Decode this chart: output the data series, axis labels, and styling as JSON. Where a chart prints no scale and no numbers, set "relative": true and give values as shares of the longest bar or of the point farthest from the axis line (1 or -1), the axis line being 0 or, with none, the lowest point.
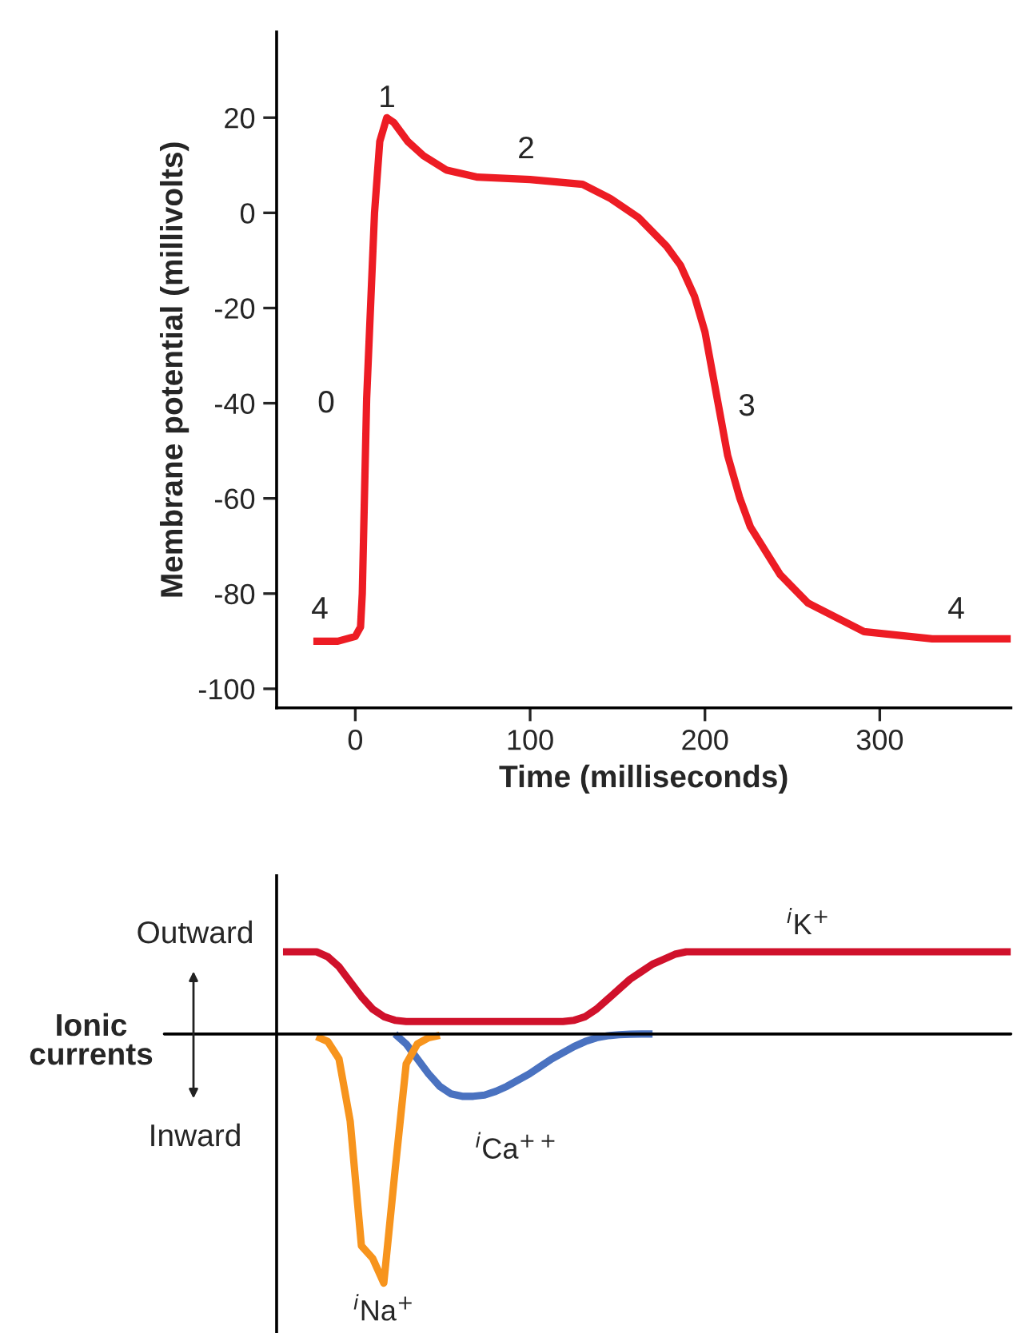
{
  "chart_data": [
    {
      "type": "line",
      "xlabel": "Time (milliseconds)",
      "ylabel": "Membrane potential (millivolts)",
      "series": [
        {
          "color": "#ed1c24",
          "x": [
            -24,
            -10,
            0,
            3,
            4,
            6.5,
            11,
            14,
            18,
            22,
            30,
            39,
            52,
            70,
            100,
            130,
            146,
            162,
            178,
            186,
            194,
            200,
            207,
            213,
            220,
            226,
            243,
            259,
            291,
            330,
            375
          ],
          "values": [
            -90,
            -90,
            -89,
            -87,
            -80,
            -39,
            0,
            15,
            20,
            19,
            15,
            12,
            9,
            7.5,
            7,
            6,
            3,
            -1,
            -7,
            -11,
            -17.5,
            -25,
            -39,
            -51,
            -60,
            -66,
            -76,
            -82,
            -88,
            -89.5,
            -89.5
          ]
        }
      ],
      "xlim": [
        -45,
        375
      ],
      "ylim": [
        -104,
        38
      ],
      "xticks": [
        0,
        100,
        200,
        300
      ],
      "yticks": [
        -100,
        -80,
        -60,
        -40,
        -20,
        0,
        20
      ],
      "grid": false,
      "legend": false,
      "marker": "none",
      "line_style": "solid",
      "annotations": [
        "0",
        "1",
        "2",
        "3",
        "4",
        "4"
      ]
    },
    {
      "type": "line",
      "relative": true,
      "grid": false,
      "legend": false,
      "marker": "none",
      "line_style": "solid",
      "categories": [
        null,
        null,
        null,
        null,
        null,
        null,
        null,
        null,
        null,
        null,
        null,
        null,
        null,
        null,
        null,
        null,
        null,
        null,
        null,
        null,
        null,
        null,
        null,
        null,
        null,
        null,
        null,
        null,
        null,
        null,
        null,
        null,
        null,
        null,
        null,
        null,
        null,
        null,
        null,
        null,
        null,
        null,
        null,
        null,
        null,
        null,
        null,
        null,
        null,
        null,
        null,
        null,
        null,
        null,
        null,
        null,
        null,
        null,
        null,
        null,
        null,
        null,
        null,
        null,
        null,
        null
      ],
      "series": [
        {
          "name": "$^{i}$K$^{+}$",
          "color": "#d0112b",
          "values": [
            0.33,
            0.33,
            0.33,
            0.33,
            0.31,
            0.27,
            0.21,
            0.15,
            0.1,
            0.07,
            0.055,
            0.05,
            0.05,
            0.05,
            0.05,
            0.05,
            0.05,
            0.05,
            0.05,
            0.05,
            0.05,
            0.05,
            0.05,
            0.05,
            0.05,
            0.05,
            0.055,
            0.07,
            0.1,
            0.14,
            0.18,
            0.22,
            0.25,
            0.28,
            0.3,
            0.32,
            0.33,
            0.33,
            0.33,
            0.33,
            0.33,
            0.33,
            0.33,
            0.33,
            0.33,
            0.33,
            0.33,
            0.33,
            0.33,
            0.33,
            0.33,
            0.33,
            0.33,
            0.33,
            0.33,
            0.33,
            0.33,
            0.33,
            0.33,
            0.33,
            0.33,
            0.33,
            0.33,
            0.33,
            0.33,
            0.33
          ]
        },
        {
          "name": "$^{i}$Ca$^{++}$",
          "color": "#4a72c0",
          "values": [
            null,
            null,
            null,
            null,
            null,
            null,
            null,
            null,
            null,
            null,
            0,
            -0.04,
            -0.1,
            -0.16,
            -0.21,
            -0.24,
            -0.25,
            -0.25,
            -0.245,
            -0.23,
            -0.21,
            -0.185,
            -0.16,
            -0.13,
            -0.1,
            -0.075,
            -0.05,
            -0.03,
            -0.015,
            -0.007,
            -0.003,
            -0.001,
            0,
            0,
            null,
            null,
            null,
            null,
            null,
            null,
            null,
            null,
            null,
            null,
            null,
            null,
            null,
            null,
            null,
            null,
            null,
            null,
            null,
            null,
            null,
            null,
            null,
            null,
            null,
            null,
            null,
            null,
            null,
            null,
            null,
            null
          ]
        },
        {
          "name": "$^{i}$Na$^{+}$",
          "color": "#f7941d",
          "values": [
            null,
            null,
            null,
            -0.01,
            -0.03,
            -0.1,
            -0.35,
            -0.85,
            -0.9,
            -1,
            -0.55,
            -0.12,
            -0.04,
            -0.015,
            -0.005,
            null,
            null,
            null,
            null,
            null,
            null,
            null,
            null,
            null,
            null,
            null,
            null,
            null,
            null,
            null,
            null,
            null,
            null,
            null,
            null,
            null,
            null,
            null,
            null,
            null,
            null,
            null,
            null,
            null,
            null,
            null,
            null,
            null,
            null,
            null,
            null,
            null,
            null,
            null,
            null,
            null,
            null,
            null,
            null,
            null,
            null,
            null,
            null,
            null,
            null,
            null
          ]
        }
      ],
      "annotations": [
        "Outward",
        "Ionic\ncurrents",
        "Inward"
      ]
    }
  ]
}
